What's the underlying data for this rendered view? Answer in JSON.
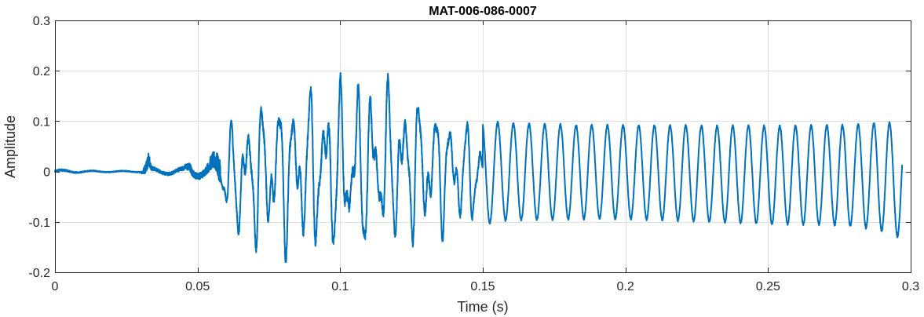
{
  "chart_data": {
    "type": "line",
    "title": "MAT-006-086-0007",
    "xlabel": "Time (s)",
    "ylabel": "Amplitude",
    "xlim": [
      0,
      0.3
    ],
    "ylim": [
      -0.2,
      0.3
    ],
    "xticks": [
      0,
      0.05,
      0.1,
      0.15,
      0.2,
      0.25,
      0.3
    ],
    "xtick_labels": [
      "0",
      "0.05",
      "0.1",
      "0.15",
      "0.2",
      "0.25",
      "0.3"
    ],
    "yticks": [
      -0.2,
      -0.1,
      0,
      0.1,
      0.2,
      0.3
    ],
    "ytick_labels": [
      "-0.2",
      "-0.1",
      "0",
      "0.1",
      "0.2",
      "0.3"
    ],
    "grid": true,
    "line_color": "#0072BD",
    "series": [
      {
        "x": [
          0,
          0.005,
          0.01,
          0.015,
          0.02,
          0.025,
          0.03,
          0.033,
          0.0335,
          0.034,
          0.036,
          0.04,
          0.045,
          0.0475,
          0.048,
          0.05,
          0.053,
          0.055,
          0.058,
          0.062,
          0.065,
          0.07,
          0.075,
          0.08,
          0.085,
          0.09,
          0.095,
          0.1,
          0.105,
          0.11,
          0.115,
          0.12,
          0.125,
          0.13,
          0.135,
          0.14,
          0.145,
          0.15,
          0.155,
          0.16,
          0.17,
          0.18,
          0.19,
          0.2,
          0.21,
          0.22,
          0.23,
          0.24,
          0.25,
          0.26,
          0.27,
          0.28,
          0.29,
          0.295,
          0.297
        ],
        "env_upper": [
          0.006,
          0.004,
          0.003,
          0.002,
          0.002,
          0.002,
          0.002,
          0.05,
          0.02,
          0.01,
          0.008,
          0.008,
          0.01,
          0.03,
          0.02,
          0.015,
          0.02,
          0.035,
          0.06,
          0.11,
          0.13,
          0.16,
          0.17,
          0.18,
          0.18,
          0.19,
          0.19,
          0.2,
          0.2,
          0.2,
          0.2,
          0.19,
          0.18,
          0.16,
          0.15,
          0.13,
          0.11,
          0.1,
          0.1,
          0.098,
          0.096,
          0.095,
          0.094,
          0.094,
          0.094,
          0.094,
          0.093,
          0.093,
          0.093,
          0.093,
          0.094,
          0.095,
          0.1,
          0.1,
          0.09
        ],
        "env_lower": [
          -0.006,
          -0.004,
          -0.003,
          -0.002,
          -0.002,
          -0.002,
          -0.002,
          -0.03,
          -0.02,
          -0.01,
          -0.008,
          -0.008,
          -0.01,
          -0.015,
          -0.015,
          -0.015,
          -0.02,
          -0.04,
          -0.07,
          -0.13,
          -0.16,
          -0.17,
          -0.17,
          -0.18,
          -0.18,
          -0.18,
          -0.18,
          -0.19,
          -0.19,
          -0.18,
          -0.17,
          -0.17,
          -0.16,
          -0.15,
          -0.14,
          -0.13,
          -0.12,
          -0.11,
          -0.1,
          -0.099,
          -0.098,
          -0.097,
          -0.096,
          -0.096,
          -0.098,
          -0.1,
          -0.102,
          -0.104,
          -0.106,
          -0.107,
          -0.108,
          -0.11,
          -0.12,
          -0.13,
          -0.14
        ],
        "dominant_frequency_hz": 182
      }
    ]
  }
}
